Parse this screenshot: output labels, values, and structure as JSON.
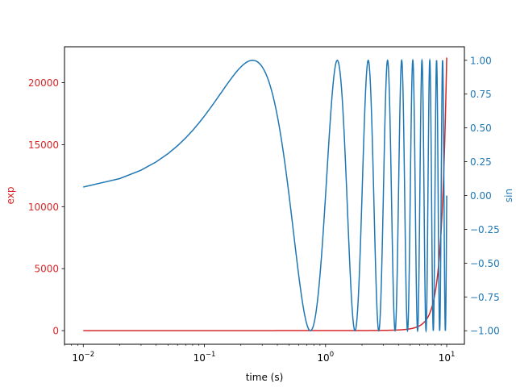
{
  "chart_data": {
    "type": "line",
    "xlabel": "time (s)",
    "xscale": "log",
    "xlim": [
      0.007,
      14
    ],
    "x_ticks": [
      {
        "value": 0.01,
        "base": "10",
        "exp": "−2"
      },
      {
        "value": 0.1,
        "base": "10",
        "exp": "−1"
      },
      {
        "value": 1,
        "base": "10",
        "exp": "0"
      },
      {
        "value": 10,
        "base": "10",
        "exp": "1"
      }
    ],
    "x_range": [
      0.01,
      10
    ],
    "x_step": 0.01,
    "grid": false,
    "left_axis": {
      "label": "exp",
      "color": "#d62728",
      "ylim": [
        -1100,
        22900
      ],
      "ticks": [
        0,
        5000,
        10000,
        15000,
        20000
      ],
      "tick_labels": [
        "0",
        "5000",
        "10000",
        "15000",
        "20000"
      ]
    },
    "right_axis": {
      "label": "sin",
      "color": "#1f77b4",
      "ylim": [
        -1.1,
        1.1
      ],
      "ticks": [
        -1.0,
        -0.75,
        -0.5,
        -0.25,
        0.0,
        0.25,
        0.5,
        0.75,
        1.0
      ],
      "tick_labels": [
        "−1.00",
        "−0.75",
        "−0.50",
        "−0.25",
        "0.00",
        "0.25",
        "0.50",
        "0.75",
        "1.00"
      ]
    },
    "series": [
      {
        "function": "exp(t)",
        "axis": "left",
        "color": "#d62728"
      },
      {
        "function": "sin(2πt)",
        "axis": "right",
        "color": "#1f77b4"
      }
    ]
  }
}
